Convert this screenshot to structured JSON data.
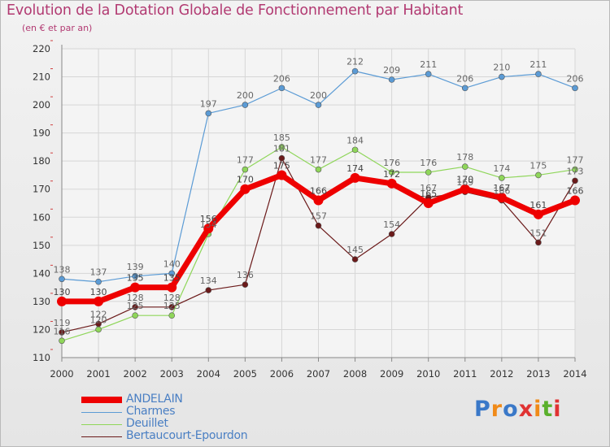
{
  "header": {
    "title": "Evolution de la Dotation Globale de Fonctionnement par Habitant",
    "subtitle": "(en € et par an)"
  },
  "chart_data": {
    "type": "line",
    "title": "Evolution de la Dotation Globale de Fonctionnement par Habitant",
    "subtitle": "(en € et par an)",
    "xlabel": "",
    "ylabel": "",
    "categories": [
      "2000",
      "2001",
      "2002",
      "2003",
      "2004",
      "2005",
      "2006",
      "2007",
      "2008",
      "2009",
      "2010",
      "2011",
      "2012",
      "2013",
      "2014"
    ],
    "ylim": [
      110,
      220
    ],
    "yticks": [
      110,
      120,
      130,
      140,
      150,
      160,
      170,
      180,
      190,
      200,
      210,
      220
    ],
    "grid": true,
    "legend_position": "bottom-left",
    "series": [
      {
        "name": "ANDELAIN",
        "color": "#ee0000",
        "emphasis": true,
        "values": [
          130,
          130,
          135,
          135,
          156,
          170,
          175,
          166,
          174,
          172,
          165,
          170,
          167,
          161,
          166
        ]
      },
      {
        "name": "Charmes",
        "color": "#5b9bd5",
        "values": [
          138,
          137,
          139,
          140,
          197,
          200,
          206,
          200,
          212,
          209,
          211,
          206,
          210,
          211,
          206
        ]
      },
      {
        "name": "Deuillet",
        "color": "#8fd65a",
        "values": [
          116,
          120,
          125,
          125,
          154,
          177,
          185,
          177,
          184,
          176,
          176,
          178,
          174,
          175,
          177
        ]
      },
      {
        "name": "Bertaucourt-Epourdon",
        "color": "#6b1a1a",
        "values": [
          119,
          122,
          128,
          128,
          134,
          136,
          181,
          157,
          145,
          154,
          167,
          169,
          166,
          151,
          173
        ]
      }
    ]
  },
  "legend": {
    "items": [
      {
        "label": "ANDELAIN",
        "color": "#ee0000"
      },
      {
        "label": "Charmes",
        "color": "#5b9bd5"
      },
      {
        "label": "Deuillet",
        "color": "#8fd65a"
      },
      {
        "label": "Bertaucourt-Epourdon",
        "color": "#6b1a1a"
      }
    ]
  },
  "logo": {
    "text": "Proxiti",
    "colors": [
      "#3a78c8",
      "#f08a18",
      "#3a78c8",
      "#e03232",
      "#f08a18",
      "#5ab02c",
      "#e03232"
    ]
  }
}
